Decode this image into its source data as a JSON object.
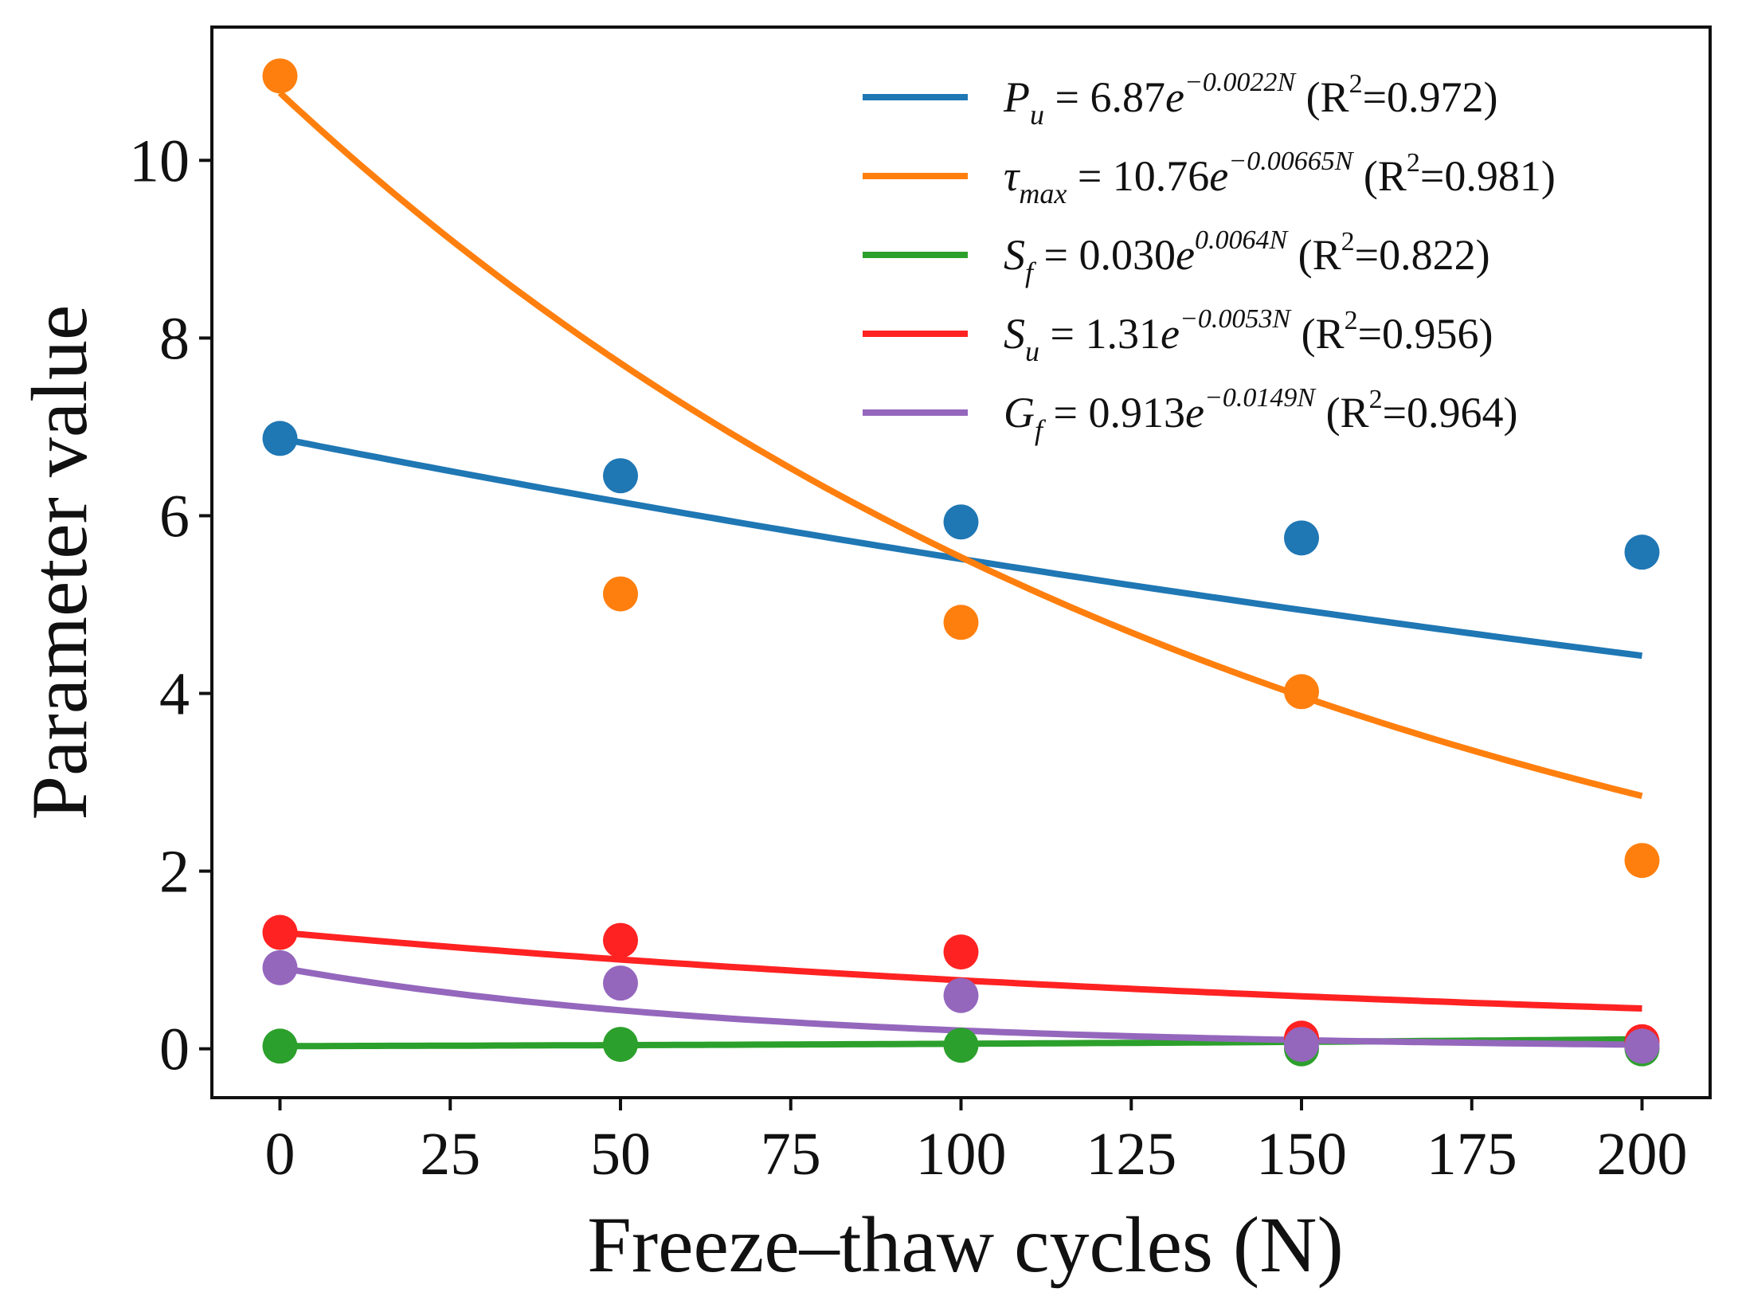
{
  "chart_data": {
    "type": "scatter",
    "xlabel": "Freeze–thaw cycles (N)",
    "ylabel": "Parameter value",
    "xlim": [
      -10,
      210
    ],
    "ylim": [
      -0.55,
      11.5
    ],
    "xticks": [
      "0",
      "25",
      "50",
      "75",
      "100",
      "125",
      "150",
      "175",
      "200"
    ],
    "xtick_values": [
      0,
      25,
      50,
      75,
      100,
      125,
      150,
      175,
      200
    ],
    "yticks": [
      "0",
      "2",
      "4",
      "6",
      "8",
      "10"
    ],
    "ytick_values": [
      0,
      2,
      4,
      6,
      8,
      10
    ],
    "legend_position": "top-right",
    "x": [
      0,
      50,
      100,
      150,
      200
    ],
    "series": [
      {
        "name": "Pu",
        "color": "#1f77b4",
        "values": [
          6.87,
          6.45,
          5.93,
          5.75,
          5.59
        ],
        "fit": {
          "a": 6.87,
          "b": -0.0022
        },
        "legend": {
          "sym": "P",
          "sub": "u",
          "coef": "6.87",
          "exp": "−0.0022N",
          "r2": "0.972"
        }
      },
      {
        "name": "tau_max",
        "color": "#ff7f0e",
        "values": [
          10.95,
          5.12,
          4.8,
          4.02,
          2.12
        ],
        "fit": {
          "a": 10.76,
          "b": -0.00665
        },
        "legend": {
          "sym": "τ",
          "sub": "max",
          "coef": "10.76",
          "exp": "−0.00665N",
          "r2": "0.981"
        }
      },
      {
        "name": "Sf",
        "color": "#2ca02c",
        "values": [
          0.03,
          0.05,
          0.04,
          0.0,
          0.0
        ],
        "fit": {
          "a": 0.03,
          "b": 0.0064
        },
        "legend": {
          "sym": "S",
          "sub": "f",
          "coef": "0.030",
          "exp": "0.0064N",
          "r2": "0.822"
        }
      },
      {
        "name": "Su",
        "color": "#ff2222",
        "values": [
          1.31,
          1.22,
          1.09,
          0.12,
          0.08
        ],
        "fit": {
          "a": 1.31,
          "b": -0.0053
        },
        "legend": {
          "sym": "S",
          "sub": "u",
          "coef": "1.31",
          "exp": "−0.0053N",
          "r2": "0.956"
        }
      },
      {
        "name": "Gf",
        "color": "#9467bd",
        "values": [
          0.913,
          0.74,
          0.6,
          0.05,
          0.03
        ],
        "fit": {
          "a": 0.913,
          "b": -0.0149
        },
        "legend": {
          "sym": "G",
          "sub": "f",
          "coef": "0.913",
          "exp": "−0.0149N",
          "r2": "0.964"
        }
      }
    ]
  }
}
